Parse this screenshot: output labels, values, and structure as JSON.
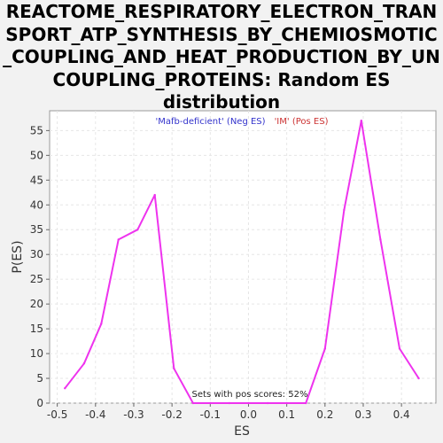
{
  "chart_data": {
    "type": "line",
    "title_lines": [
      "REACTOME_RESPIRATORY_ELECTRON_TRAN",
      "SPORT_ATP_SYNTHESIS_BY_CHEMIOSMOTIC",
      "_COUPLING_AND_HEAT_PRODUCTION_BY_UN",
      "COUPLING_PROTEINS: Random ES",
      "distribution"
    ],
    "xlabel": "ES",
    "ylabel": "P(ES)",
    "xlim": [
      -0.52,
      0.49
    ],
    "ylim": [
      0,
      59
    ],
    "xticks": [
      "-0.5",
      "-0.4",
      "-0.3",
      "-0.2",
      "-0.1",
      "0.0",
      "0.1",
      "0.2",
      "0.3",
      "0.4"
    ],
    "xtick_values": [
      -0.5,
      -0.4,
      -0.3,
      -0.2,
      -0.1,
      0.0,
      0.1,
      0.2,
      0.3,
      0.4
    ],
    "yticks": [
      "0",
      "5",
      "10",
      "15",
      "20",
      "25",
      "30",
      "35",
      "40",
      "45",
      "50",
      "55"
    ],
    "ytick_values": [
      0,
      5,
      10,
      15,
      20,
      25,
      30,
      35,
      40,
      45,
      50,
      55
    ],
    "grid": true,
    "legend": {
      "placement": "top-center",
      "neg_label": "'Mafb-deficient' (Neg ES)",
      "pos_label": "'IM' (Pos ES)",
      "neg_color": "#3333cc",
      "pos_color": "#cc3333"
    },
    "annotation": "Sets with pos scores: 52%",
    "line_color": "#ee33ee",
    "series": [
      {
        "x": [
          -0.48,
          -0.43,
          -0.385,
          -0.34,
          -0.29,
          -0.245,
          -0.195,
          -0.145,
          -0.1,
          -0.05,
          0.0,
          0.05,
          0.1,
          0.15,
          0.2,
          0.25,
          0.295,
          0.345,
          0.395,
          0.445
        ],
        "y": [
          3,
          8,
          16,
          33,
          35,
          42,
          7,
          0,
          0,
          0,
          0,
          0,
          0,
          0,
          11,
          39,
          57,
          33,
          11,
          5
        ]
      }
    ]
  }
}
